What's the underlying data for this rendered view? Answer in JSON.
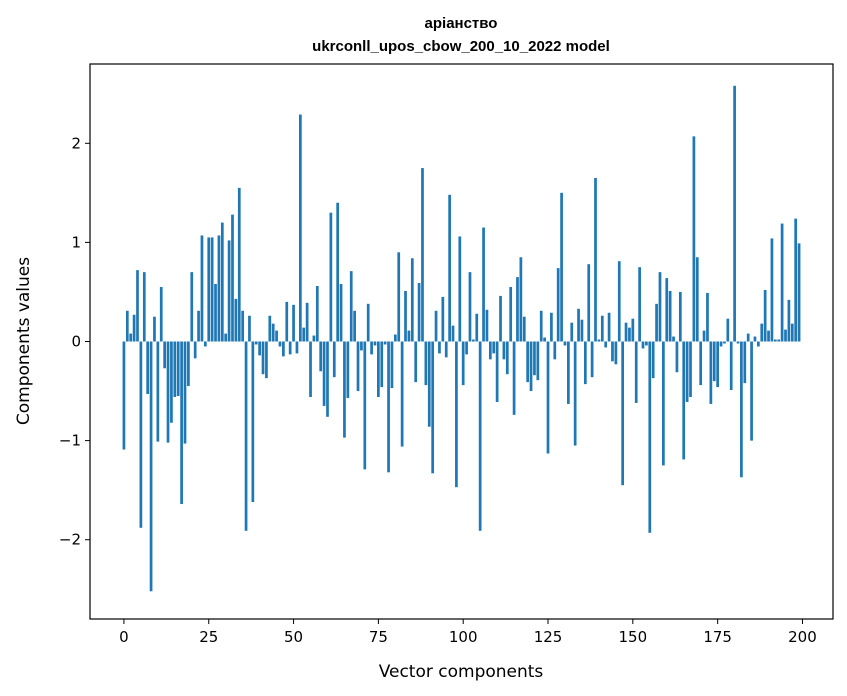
{
  "chart_data": {
    "type": "bar",
    "title_line1": "аріанство",
    "title_line2": "ukrconll_upos_cbow_200_10_2022 model",
    "xlabel": "Vector components",
    "ylabel": "Components values",
    "xlim": [
      -10,
      209
    ],
    "ylim": [
      -2.8,
      2.8
    ],
    "xticks": [
      0,
      25,
      50,
      75,
      100,
      125,
      150,
      175,
      200
    ],
    "yticks": [
      -2,
      -1,
      0,
      1,
      2
    ],
    "ytick_labels": [
      "−2",
      "−1",
      "0",
      "1",
      "2"
    ],
    "grid": false,
    "bar_color": "#1f77b4",
    "values": [
      -1.09,
      0.31,
      0.08,
      0.27,
      0.72,
      -1.88,
      0.7,
      -0.53,
      -2.52,
      0.25,
      -1.01,
      0.55,
      -0.27,
      -1.02,
      -0.82,
      -0.56,
      -0.55,
      -1.64,
      -1.03,
      -0.45,
      0.7,
      -0.17,
      0.31,
      1.07,
      -0.05,
      1.05,
      1.05,
      0.58,
      1.07,
      1.2,
      0.08,
      1.02,
      1.28,
      0.43,
      1.55,
      0.31,
      -1.91,
      0.26,
      -1.62,
      -0.03,
      -0.14,
      -0.33,
      -0.37,
      0.26,
      0.18,
      0.11,
      -0.05,
      -0.15,
      0.4,
      -0.13,
      0.37,
      -0.12,
      2.29,
      0.14,
      0.39,
      -0.56,
      0.06,
      0.56,
      -0.3,
      -0.65,
      -0.76,
      1.3,
      -0.36,
      1.4,
      0.58,
      -0.97,
      -0.57,
      0.71,
      0.31,
      -0.5,
      -0.09,
      -1.29,
      0.38,
      -0.13,
      -0.04,
      -0.56,
      -0.46,
      -0.03,
      -1.32,
      -0.47,
      0.07,
      0.9,
      -1.06,
      0.51,
      0.11,
      0.84,
      -0.41,
      0.59,
      1.75,
      -0.44,
      -0.86,
      -1.33,
      0.31,
      -0.12,
      0.45,
      -0.16,
      1.48,
      0.16,
      -1.47,
      1.06,
      -0.44,
      -0.13,
      0.7,
      0.02,
      0.28,
      -1.91,
      1.15,
      0.32,
      -0.18,
      -0.12,
      -0.61,
      0.46,
      -0.18,
      -0.33,
      0.55,
      -0.74,
      0.65,
      0.85,
      0.25,
      -0.41,
      -0.5,
      -0.34,
      -0.39,
      0.31,
      0.04,
      -1.13,
      0.29,
      -0.18,
      0.74,
      1.5,
      -0.04,
      -0.63,
      0.19,
      -1.05,
      0.33,
      0.22,
      -0.43,
      0.78,
      -0.36,
      1.65,
      0.02,
      0.26,
      -0.06,
      0.29,
      -0.2,
      -0.23,
      0.81,
      -1.45,
      0.19,
      0.14,
      0.23,
      -0.62,
      0.75,
      -0.07,
      -0.04,
      -1.93,
      -0.37,
      0.38,
      0.7,
      -1.25,
      0.64,
      0.51,
      0.05,
      -0.31,
      0.5,
      -1.19,
      -0.61,
      -0.56,
      2.07,
      0.85,
      -0.44,
      0.11,
      0.49,
      -0.63,
      -0.4,
      -0.46,
      -0.05,
      -0.02,
      0.23,
      -0.49,
      2.58,
      -0.02,
      -1.37,
      -0.42,
      0.08,
      -1.0,
      0.05,
      -0.05,
      0.18,
      0.52,
      0.11,
      1.04,
      0.02,
      0.02,
      1.19,
      0.12,
      0.42,
      0.18,
      1.24,
      0.99
    ]
  }
}
